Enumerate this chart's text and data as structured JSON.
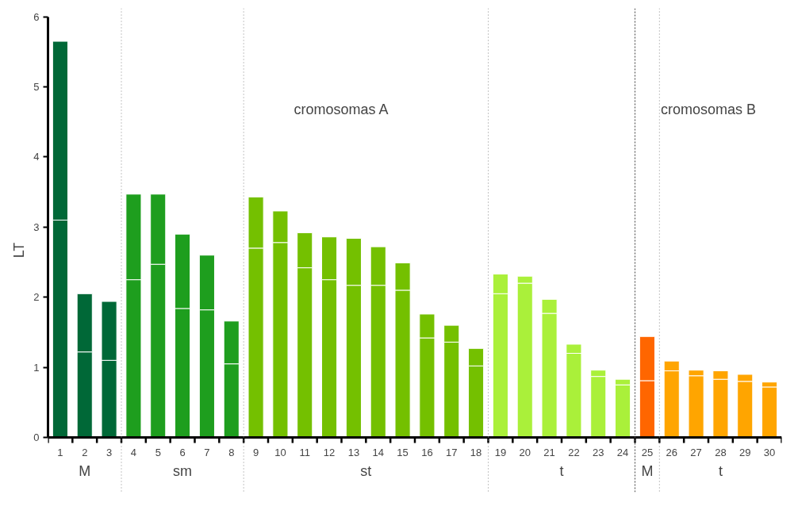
{
  "chart_data": {
    "type": "bar",
    "stacked": true,
    "ylabel": "LT",
    "x": [
      1,
      2,
      3,
      4,
      5,
      6,
      7,
      8,
      9,
      10,
      11,
      12,
      13,
      14,
      15,
      16,
      17,
      18,
      19,
      20,
      21,
      22,
      23,
      24,
      25,
      26,
      27,
      28,
      29,
      30
    ],
    "series": [
      {
        "values": [
          3.1,
          1.22,
          1.1,
          2.25,
          2.47,
          1.84,
          1.82,
          1.05,
          2.7,
          2.78,
          2.42,
          2.25,
          2.17,
          2.17,
          2.1,
          1.42,
          1.36,
          1.02,
          2.05,
          2.2,
          1.77,
          1.2,
          0.87,
          0.75,
          0.81,
          0.95,
          0.88,
          0.83,
          0.8,
          0.72
        ],
        "colors": [
          "#006837",
          "#006837",
          "#006837",
          "#1e9e1e",
          "#1e9e1e",
          "#1e9e1e",
          "#1e9e1e",
          "#1e9e1e",
          "#74c000",
          "#74c000",
          "#74c000",
          "#74c000",
          "#74c000",
          "#74c000",
          "#74c000",
          "#74c000",
          "#74c000",
          "#74c000",
          "#aaf03a",
          "#aaf03a",
          "#aaf03a",
          "#aaf03a",
          "#aaf03a",
          "#aaf03a",
          "#ff6600",
          "#ffa500",
          "#ffa500",
          "#ffa500",
          "#ffa500",
          "#ffa500"
        ]
      },
      {
        "values": [
          2.55,
          0.83,
          0.84,
          1.22,
          1.0,
          1.06,
          0.78,
          0.61,
          0.73,
          0.45,
          0.5,
          0.61,
          0.67,
          0.55,
          0.39,
          0.34,
          0.24,
          0.25,
          0.28,
          0.1,
          0.2,
          0.13,
          0.09,
          0.08,
          0.63,
          0.14,
          0.08,
          0.12,
          0.1,
          0.07
        ],
        "colors": [
          "#006837",
          "#006837",
          "#006837",
          "#1e9e1e",
          "#1e9e1e",
          "#1e9e1e",
          "#1e9e1e",
          "#1e9e1e",
          "#74c000",
          "#74c000",
          "#74c000",
          "#74c000",
          "#74c000",
          "#74c000",
          "#74c000",
          "#74c000",
          "#74c000",
          "#74c000",
          "#aaf03a",
          "#aaf03a",
          "#aaf03a",
          "#aaf03a",
          "#aaf03a",
          "#aaf03a",
          "#ff6600",
          "#ffa500",
          "#ffa500",
          "#ffa500",
          "#ffa500",
          "#ffa500"
        ]
      }
    ],
    "xlim": [
      0.5,
      30.5
    ],
    "xticks": [
      1,
      2,
      3,
      4,
      5,
      6,
      7,
      8,
      9,
      10,
      11,
      12,
      13,
      14,
      15,
      16,
      17,
      18,
      19,
      20,
      21,
      22,
      23,
      24,
      25,
      26,
      27,
      28,
      29,
      30
    ],
    "ylim": [
      0,
      6
    ],
    "yticks": [
      0,
      1,
      2,
      3,
      4,
      5,
      6
    ],
    "ref_lines": [
      {
        "axis": "x",
        "value": 3.5,
        "line_style": "dotted"
      },
      {
        "axis": "x",
        "value": 8.5,
        "line_style": "dotted"
      },
      {
        "axis": "x",
        "value": 18.5,
        "line_style": "dotted"
      },
      {
        "axis": "x",
        "value": 24.5,
        "line_style": "dashed"
      },
      {
        "axis": "x",
        "value": 25.5,
        "line_style": "dotted"
      }
    ],
    "annotations": [
      "cromosomas A",
      "cromosomas B",
      "M",
      "sm",
      "st",
      "t",
      "M",
      "t"
    ],
    "grid": false
  }
}
